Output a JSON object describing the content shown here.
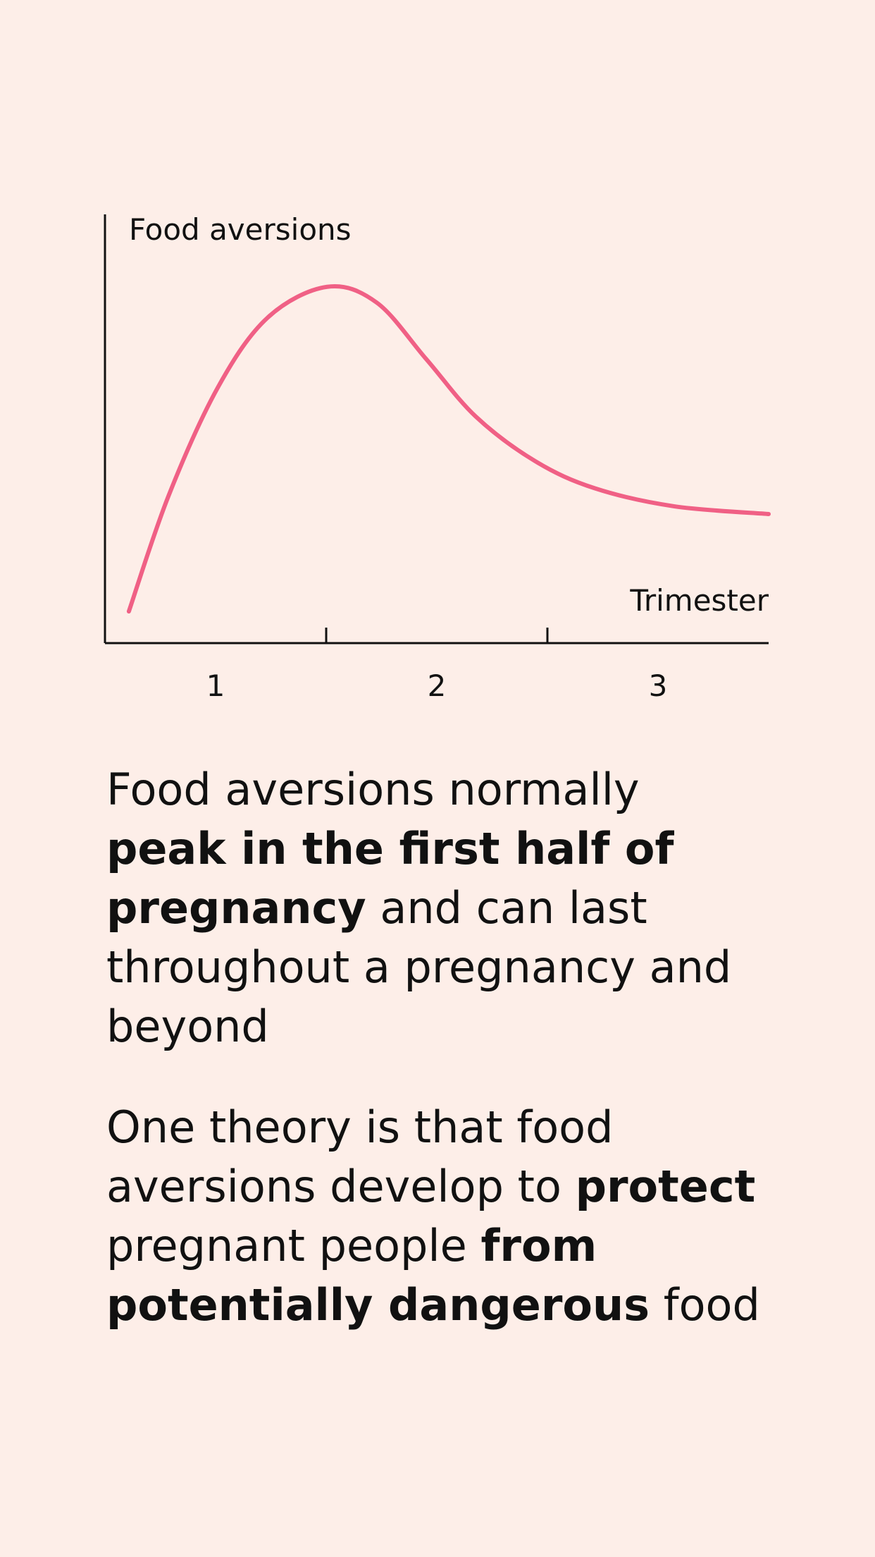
{
  "chart_data": {
    "type": "line",
    "y_label": "Food aversions",
    "x_label": "Trimester",
    "categories": [
      "1",
      "2",
      "3"
    ],
    "xlim": [
      0,
      3
    ],
    "ylim": [
      0,
      100
    ],
    "xticks": [
      1,
      2
    ],
    "series": [
      {
        "color": "#f06085",
        "x": [
          0.108,
          0.287,
          0.511,
          0.735,
          1.004,
          1.229,
          1.453,
          1.677,
          1.946,
          2.215,
          2.574,
          3.0
        ],
        "values": [
          7.4,
          34.3,
          59.7,
          75.9,
          83.1,
          79.4,
          66.2,
          52.8,
          42.4,
          36.1,
          31.9,
          30.1
        ]
      }
    ]
  },
  "text": {
    "paragraphs": [
      {
        "lines": [
          [
            {
              "text": "Food aversions normally",
              "bold": false
            }
          ],
          [
            {
              "text": "peak in the first half of",
              "bold": true
            }
          ],
          [
            {
              "text": "pregnancy",
              "bold": true
            },
            {
              "text": " and can last",
              "bold": false
            }
          ],
          [
            {
              "text": "throughout a pregnancy and",
              "bold": false
            }
          ],
          [
            {
              "text": "beyond",
              "bold": false
            }
          ]
        ]
      },
      {
        "lines": [
          [
            {
              "text": "One theory is that food",
              "bold": false
            }
          ],
          [
            {
              "text": "aversions develop to ",
              "bold": false
            },
            {
              "text": "protect",
              "bold": true
            }
          ],
          [
            {
              "text": "pregnant people ",
              "bold": false
            },
            {
              "text": "from",
              "bold": true
            }
          ],
          [
            {
              "text": "potentially dangerous",
              "bold": true
            },
            {
              "text": " food",
              "bold": false
            }
          ]
        ]
      }
    ]
  }
}
